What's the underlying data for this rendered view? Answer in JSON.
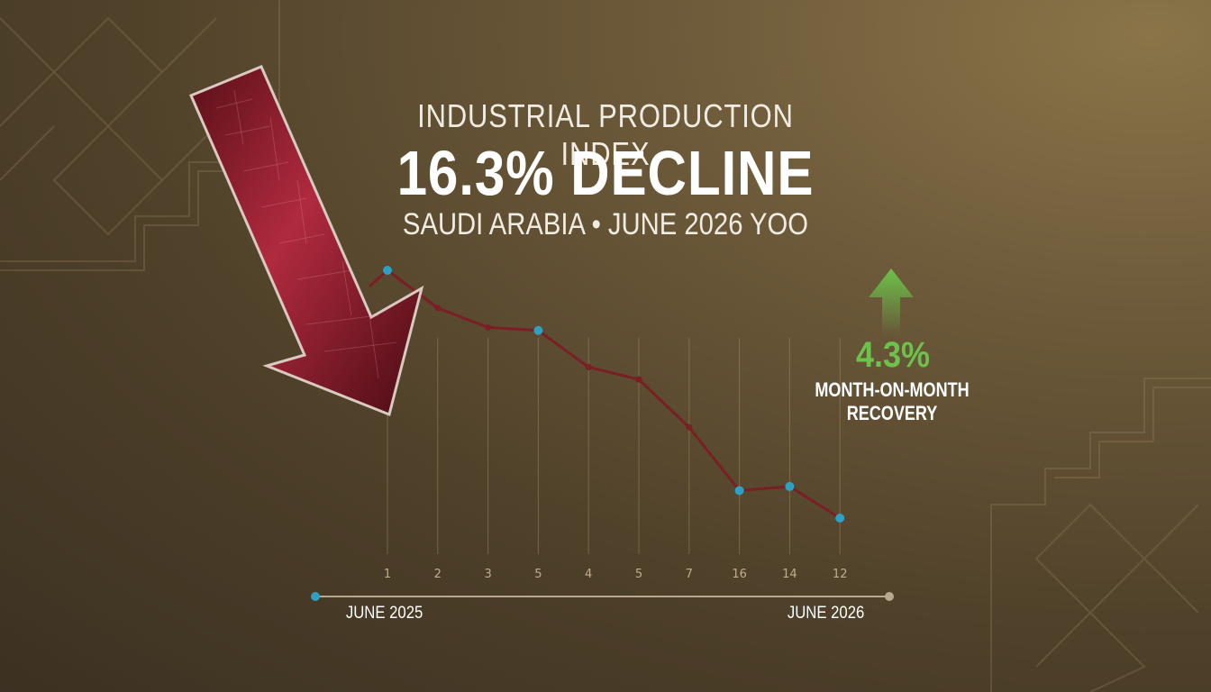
{
  "header": {
    "subtitle_top": "INDUSTRIAL PRODUCTION INDEX",
    "headline": "16.3% DECLINE",
    "subtitle_bottom": "SAUDI ARABIA • JUNE 2026 YOO"
  },
  "recovery": {
    "value": "4.3%",
    "label_line1": "MONTH-ON-MONTH",
    "label_line2": "RECOVERY",
    "color": "#6cc24a"
  },
  "timeline": {
    "start_label": "JUNE 2025",
    "end_label": "JUNE 2026"
  },
  "colors": {
    "line": "#7a1f24",
    "marker": "#2ea0c4",
    "arrow": "#a8283a",
    "accent_green": "#6cc24a"
  },
  "chart_data": {
    "type": "line",
    "categories": [
      "1",
      "2",
      "3",
      "5",
      "4",
      "5",
      "7",
      "16",
      "14",
      "12"
    ],
    "values": [
      100,
      96.3,
      94.4,
      94.1,
      90.5,
      89.3,
      84.6,
      78.4,
      78.8,
      75.7
    ],
    "highlighted_points": [
      0,
      3,
      7,
      8,
      9
    ],
    "ylim": [
      70,
      102
    ],
    "grid": "vertical-only",
    "legend": "none"
  }
}
